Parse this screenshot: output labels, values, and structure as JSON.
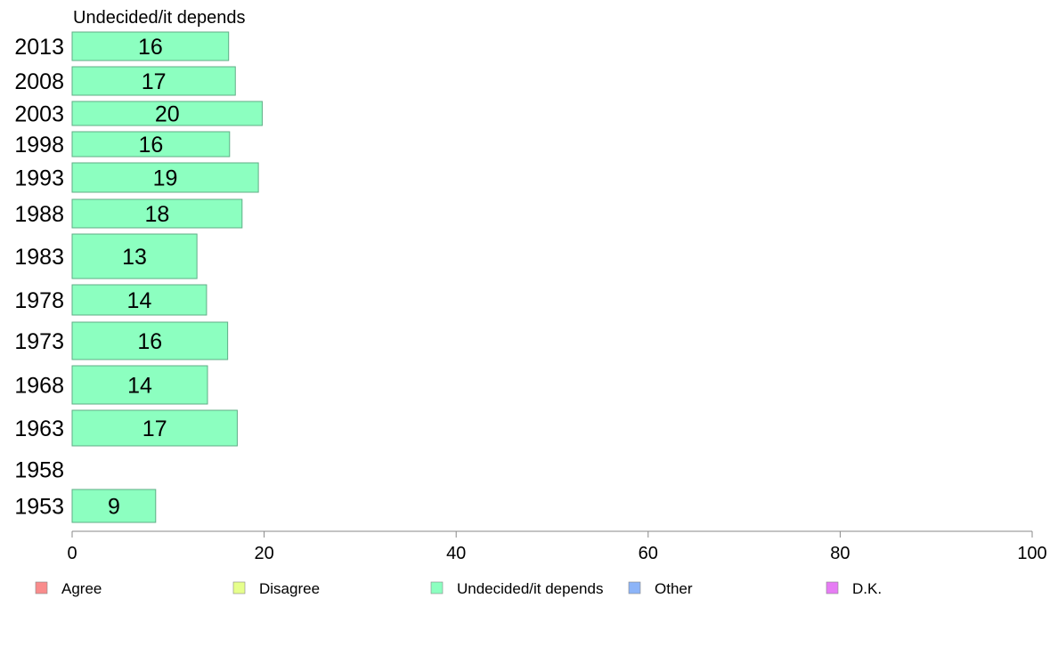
{
  "chart_data": {
    "type": "bar",
    "orientation": "horizontal",
    "panel_title": "Undecided/it depends",
    "categories": [
      "2013",
      "2008",
      "2003",
      "1998",
      "1993",
      "1988",
      "1983",
      "1978",
      "1973",
      "1968",
      "1963",
      "1958",
      "1953"
    ],
    "values": [
      16.3,
      17,
      19.8,
      16.4,
      19.4,
      17.7,
      13,
      14,
      16.2,
      14.1,
      17.2,
      null,
      8.7
    ],
    "labels": [
      "16",
      "17",
      "20",
      "16",
      "19",
      "18",
      "13",
      "14",
      "16",
      "14",
      "17",
      "",
      "9"
    ],
    "bar_color": "#8CFFC0",
    "bar_stroke": "#5FAE86",
    "xlim": [
      0,
      100
    ],
    "xticks": [
      0,
      20,
      40,
      60,
      80,
      100
    ],
    "grid": false,
    "legend_position": "bottom",
    "legend": [
      {
        "name": "Agree",
        "color": "#F98C8C"
      },
      {
        "name": "Disagree",
        "color": "#E6FF8C"
      },
      {
        "name": "Undecided/it depends",
        "color": "#8CFFC0"
      },
      {
        "name": "Other",
        "color": "#8CB4F8"
      },
      {
        "name": "D.K.",
        "color": "#E67CF4"
      }
    ]
  }
}
